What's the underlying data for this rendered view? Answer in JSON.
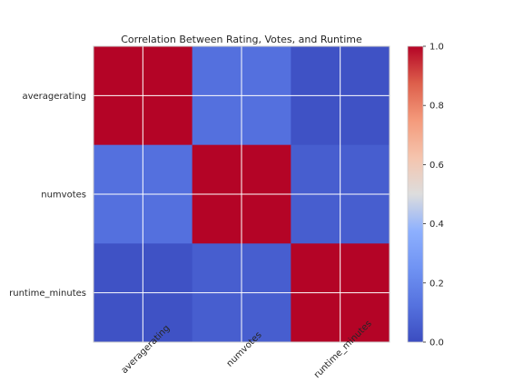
{
  "chart_data": {
    "type": "heatmap",
    "title": "Correlation Between Rating, Votes, and Runtime",
    "categories": [
      "averagerating",
      "numvotes",
      "runtime_minutes"
    ],
    "matrix": [
      [
        1.0,
        0.12,
        0.02
      ],
      [
        0.12,
        1.0,
        0.06
      ],
      [
        0.02,
        0.06,
        1.0
      ]
    ],
    "colorbar": {
      "min": 0.0,
      "max": 1.0,
      "ticks": [
        "0.0",
        "0.2",
        "0.4",
        "0.6",
        "0.8",
        "1.0"
      ]
    },
    "colormap": "coolwarm",
    "grid": true,
    "xtick_rotation": 45
  }
}
